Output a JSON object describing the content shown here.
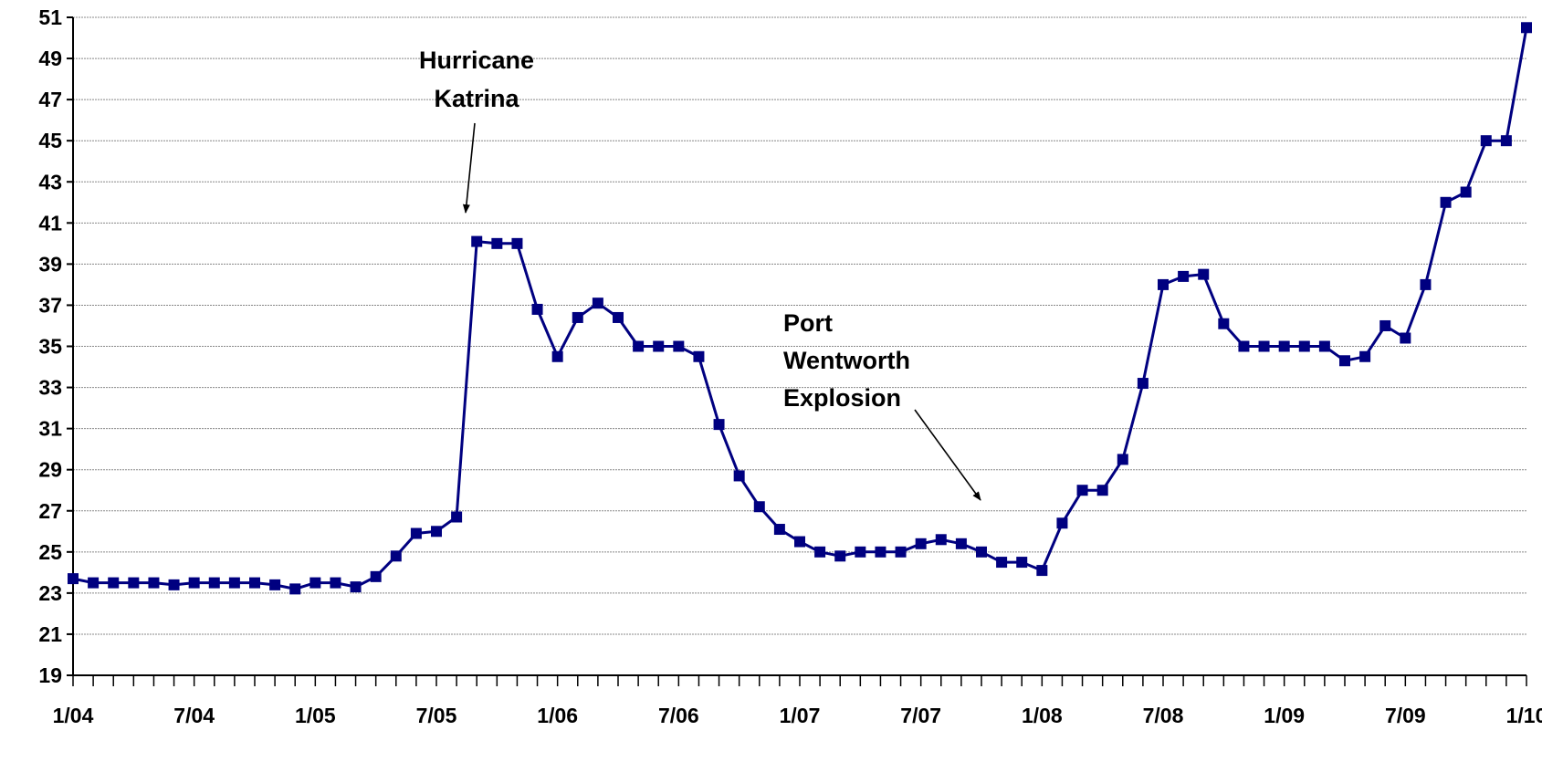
{
  "chart_data": {
    "type": "line",
    "title": "",
    "xlabel": "",
    "ylabel": "",
    "ylim": [
      19,
      51
    ],
    "yticks": [
      19,
      21,
      23,
      25,
      27,
      29,
      31,
      33,
      35,
      37,
      39,
      41,
      43,
      45,
      47,
      49,
      51
    ],
    "x_tick_labels": [
      "1/04",
      "7/04",
      "1/05",
      "7/05",
      "1/06",
      "7/06",
      "1/07",
      "7/07",
      "1/08",
      "7/08",
      "1/09",
      "7/09",
      "1/10"
    ],
    "grid": true,
    "series_color": "#000080",
    "x_start": "2004-01",
    "x_end": "2010-01",
    "series": [
      {
        "name": "",
        "x": [
          "2004-01",
          "2004-02",
          "2004-03",
          "2004-04",
          "2004-05",
          "2004-06",
          "2004-07",
          "2004-08",
          "2004-09",
          "2004-10",
          "2004-11",
          "2004-12",
          "2005-01",
          "2005-02",
          "2005-03",
          "2005-04",
          "2005-05",
          "2005-06",
          "2005-07",
          "2005-08",
          "2005-09",
          "2005-10",
          "2005-11",
          "2005-12",
          "2006-01",
          "2006-02",
          "2006-03",
          "2006-04",
          "2006-05",
          "2006-06",
          "2006-07",
          "2006-08",
          "2006-09",
          "2006-10",
          "2006-11",
          "2006-12",
          "2007-01",
          "2007-02",
          "2007-03",
          "2007-04",
          "2007-05",
          "2007-06",
          "2007-07",
          "2007-08",
          "2007-09",
          "2007-10",
          "2007-11",
          "2007-12",
          "2008-01",
          "2008-02",
          "2008-03",
          "2008-04",
          "2008-05",
          "2008-06",
          "2008-07",
          "2008-08",
          "2008-09",
          "2008-10",
          "2008-11",
          "2008-12",
          "2009-01",
          "2009-02",
          "2009-03",
          "2009-04",
          "2009-05",
          "2009-06",
          "2009-07",
          "2009-08",
          "2009-09",
          "2009-10",
          "2009-11",
          "2009-12",
          "2010-01"
        ],
        "values": [
          23.7,
          23.5,
          23.5,
          23.5,
          23.5,
          23.4,
          23.5,
          23.5,
          23.5,
          23.5,
          23.4,
          23.2,
          23.5,
          23.5,
          23.3,
          23.8,
          24.8,
          25.9,
          26.0,
          26.7,
          40.1,
          40.0,
          40.0,
          36.8,
          34.5,
          36.4,
          37.1,
          36.4,
          35.0,
          35.0,
          35.0,
          34.5,
          31.2,
          28.7,
          27.2,
          26.1,
          25.5,
          25.0,
          24.8,
          25.0,
          25.0,
          25.0,
          25.4,
          25.6,
          25.4,
          25.0,
          24.5,
          24.5,
          24.1,
          26.4,
          28.0,
          28.0,
          29.5,
          33.2,
          38.0,
          38.4,
          38.5,
          36.1,
          35.0,
          35.0,
          35.0,
          35.0,
          35.0,
          34.3,
          34.5,
          36.0,
          35.4,
          38.0,
          42.0,
          42.5,
          45.0,
          45.0,
          50.5
        ]
      }
    ],
    "annotations": [
      {
        "lines": [
          "Hurricane",
          "Katrina"
        ],
        "target_x": "2005-10",
        "target_y": 40.5
      },
      {
        "lines": [
          "Port",
          "Wentworth",
          "Explosion"
        ],
        "target_x": "2008-03",
        "target_y": 28.3
      }
    ]
  }
}
